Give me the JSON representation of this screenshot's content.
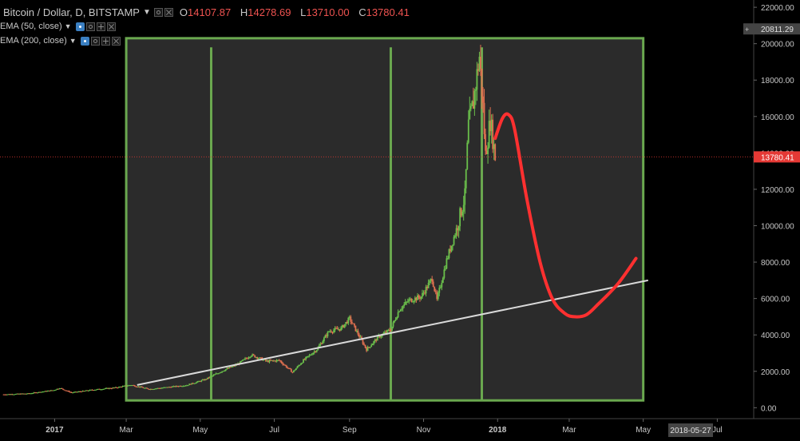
{
  "header": {
    "symbol": "Bitcoin / Dollar, D, BITSTAMP",
    "ohlc": [
      {
        "k": "O",
        "v": "14107.87"
      },
      {
        "k": "H",
        "v": "14278.69"
      },
      {
        "k": "L",
        "v": "13710.00"
      },
      {
        "k": "C",
        "v": "13780.41"
      }
    ]
  },
  "indicators": [
    {
      "label": "EMA (50, close)"
    },
    {
      "label": "EMA (200, close)"
    }
  ],
  "colors": {
    "background": "#000000",
    "panel": "#2d2d2d",
    "box_border": "#6aa84f",
    "vline": "#6aa84f",
    "up_candle": "#6abf4b",
    "down_candle": "#e07050",
    "trendline": "#d9d9d9",
    "projection": "#ff3030",
    "price_marker": "#e53935",
    "axis_text": "#c8c8c8",
    "highlight_box": "#444444"
  },
  "price_axis": {
    "labels": [
      "22000.00",
      "20000.00",
      "18000.00",
      "16000.00",
      "14000.00",
      "12000.00",
      "10000.00",
      "8000.00",
      "6000.00",
      "4000.00",
      "2000.00",
      "0.00"
    ],
    "highlight_label": "20811.29",
    "current_label": "13780.41",
    "current_price": 13780.41
  },
  "time_axis": {
    "labels": [
      {
        "text": "2017",
        "date": "2017-01-01",
        "bold": true
      },
      {
        "text": "Mar",
        "date": "2017-03-01"
      },
      {
        "text": "May",
        "date": "2017-05-01"
      },
      {
        "text": "Jul",
        "date": "2017-07-01"
      },
      {
        "text": "Sep",
        "date": "2017-09-01"
      },
      {
        "text": "Nov",
        "date": "2017-11-01"
      },
      {
        "text": "2018",
        "date": "2018-01-01",
        "bold": true
      },
      {
        "text": "Mar",
        "date": "2018-03-01"
      },
      {
        "text": "May",
        "date": "2018-05-01"
      },
      {
        "text": "Jul",
        "date": "2018-07-01"
      }
    ],
    "highlight_label": "2018-05-27"
  },
  "chart_data": {
    "type": "candlestick",
    "series": [
      {
        "name": "BTCUSD",
        "points": [
          {
            "x": "2016-11-20",
            "y": 730
          },
          {
            "x": "2016-12-10",
            "y": 775
          },
          {
            "x": "2016-12-31",
            "y": 960
          },
          {
            "x": "2017-01-05",
            "y": 1080
          },
          {
            "x": "2017-01-15",
            "y": 830
          },
          {
            "x": "2017-02-01",
            "y": 980
          },
          {
            "x": "2017-02-20",
            "y": 1100
          },
          {
            "x": "2017-03-05",
            "y": 1250
          },
          {
            "x": "2017-03-20",
            "y": 1020
          },
          {
            "x": "2017-04-05",
            "y": 1130
          },
          {
            "x": "2017-04-20",
            "y": 1240
          },
          {
            "x": "2017-05-05",
            "y": 1550
          },
          {
            "x": "2017-05-20",
            "y": 2050
          },
          {
            "x": "2017-06-01",
            "y": 2400
          },
          {
            "x": "2017-06-12",
            "y": 2900
          },
          {
            "x": "2017-06-25",
            "y": 2550
          },
          {
            "x": "2017-07-05",
            "y": 2600
          },
          {
            "x": "2017-07-16",
            "y": 1950
          },
          {
            "x": "2017-07-25",
            "y": 2600
          },
          {
            "x": "2017-08-05",
            "y": 3200
          },
          {
            "x": "2017-08-15",
            "y": 4200
          },
          {
            "x": "2017-08-25",
            "y": 4350
          },
          {
            "x": "2017-09-01",
            "y": 4900
          },
          {
            "x": "2017-09-15",
            "y": 3200
          },
          {
            "x": "2017-09-25",
            "y": 3900
          },
          {
            "x": "2017-10-05",
            "y": 4300
          },
          {
            "x": "2017-10-12",
            "y": 5400
          },
          {
            "x": "2017-10-20",
            "y": 5900
          },
          {
            "x": "2017-10-30",
            "y": 6100
          },
          {
            "x": "2017-11-08",
            "y": 7100
          },
          {
            "x": "2017-11-12",
            "y": 5900
          },
          {
            "x": "2017-11-20",
            "y": 8100
          },
          {
            "x": "2017-11-28",
            "y": 9800
          },
          {
            "x": "2017-12-05",
            "y": 11600
          },
          {
            "x": "2017-12-08",
            "y": 15500
          },
          {
            "x": "2017-12-12",
            "y": 16800
          },
          {
            "x": "2017-12-17",
            "y": 19300
          },
          {
            "x": "2017-12-20",
            "y": 16500
          },
          {
            "x": "2017-12-22",
            "y": 13900
          },
          {
            "x": "2017-12-26",
            "y": 15800
          },
          {
            "x": "2017-12-30",
            "y": 13800
          }
        ]
      },
      {
        "name": "trendline",
        "points": [
          {
            "x": "2017-03-10",
            "y": 1250
          },
          {
            "x": "2018-05-05",
            "y": 7000
          }
        ]
      },
      {
        "name": "projection",
        "points": [
          {
            "x": "2017-12-30",
            "y": 14800
          },
          {
            "x": "2018-01-05",
            "y": 15900
          },
          {
            "x": "2018-01-10",
            "y": 16100
          },
          {
            "x": "2018-01-15",
            "y": 15300
          },
          {
            "x": "2018-01-25",
            "y": 11500
          },
          {
            "x": "2018-02-05",
            "y": 8000
          },
          {
            "x": "2018-02-15",
            "y": 6000
          },
          {
            "x": "2018-02-25",
            "y": 5200
          },
          {
            "x": "2018-03-05",
            "y": 5000
          },
          {
            "x": "2018-03-15",
            "y": 5100
          },
          {
            "x": "2018-03-25",
            "y": 5700
          },
          {
            "x": "2018-04-10",
            "y": 6800
          },
          {
            "x": "2018-04-25",
            "y": 8200
          }
        ]
      }
    ],
    "vertical_markers": [
      "2017-05-10",
      "2017-10-05",
      "2017-12-19"
    ],
    "box_range": {
      "x": [
        "2017-03-01",
        "2018-05-01"
      ],
      "y": [
        400,
        20300
      ]
    },
    "ylim": [
      -600,
      22400
    ],
    "xlim": [
      "2016-11-17",
      "2018-07-31"
    ],
    "grid": false,
    "xlabel": "",
    "ylabel": ""
  }
}
